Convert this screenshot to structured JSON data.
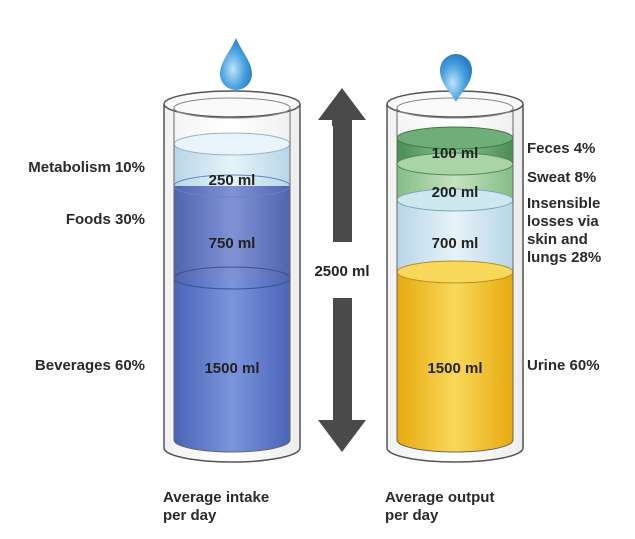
{
  "intake": {
    "caption_line1": "Average intake",
    "caption_line2": "per day",
    "layers": [
      {
        "source": "Metabolism 10%",
        "volume": "250 ml",
        "color": "#cfe6f0"
      },
      {
        "source": "Foods 30%",
        "volume": "750 ml",
        "color": "#6c7fc8"
      },
      {
        "source": "Beverages 60%",
        "volume": "1500 ml",
        "color": "#5b79c8"
      }
    ]
  },
  "output": {
    "caption_line1": "Average output",
    "caption_line2": "per day",
    "layers": [
      {
        "source": "Feces 4%",
        "volume": "100 ml",
        "color": "#5fa06a"
      },
      {
        "source": "Sweat 8%",
        "volume": "200 ml",
        "color": "#9fcf9a"
      },
      {
        "source_lines": [
          "Insensible",
          "losses via",
          "skin and",
          "lungs 28%"
        ],
        "volume": "700 ml",
        "color": "#d5ecf2"
      },
      {
        "source": "Urine 60%",
        "volume": "1500 ml",
        "color": "#f2c52a"
      }
    ]
  },
  "total": "2500 ml",
  "colors": {
    "arrow": "#4a4a4a",
    "drop": "#4ba3e0",
    "glass_outline": "#555555"
  }
}
